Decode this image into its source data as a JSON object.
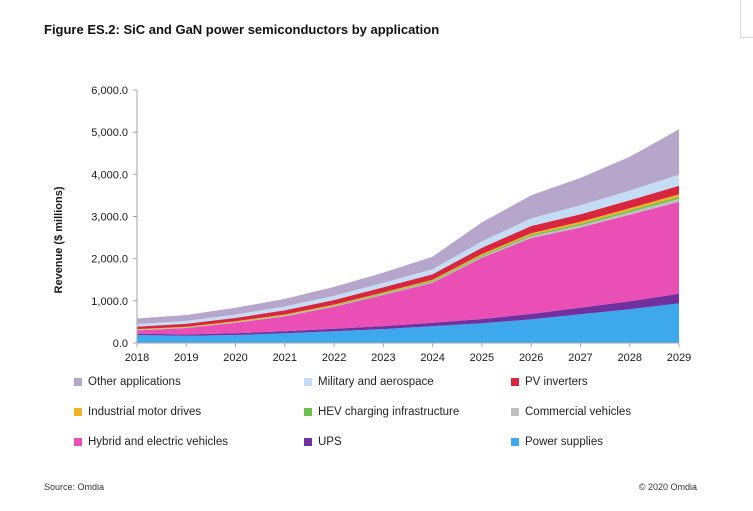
{
  "figure": {
    "title": "Figure ES.2: SiC and GaN power semiconductors by application",
    "source": "Source: Omdia",
    "copyright": "© 2020 Omdia"
  },
  "chart_data": {
    "type": "area",
    "stacked": true,
    "ylabel": "Revenue ($ millions)",
    "xlabel": "",
    "ylim": [
      0,
      6000
    ],
    "yticks": [
      "0.0",
      "1,000.0",
      "2,000.0",
      "3,000.0",
      "4,000.0",
      "5,000.0",
      "6,000.0"
    ],
    "categories": [
      "2018",
      "2019",
      "2020",
      "2021",
      "2022",
      "2023",
      "2024",
      "2025",
      "2026",
      "2027",
      "2028",
      "2029"
    ],
    "legend_position": "bottom",
    "grid": false,
    "series": [
      {
        "name": "Power supplies",
        "color": "#3ea8ec",
        "values": [
          190,
          170,
          190,
          230,
          280,
          330,
          400,
          470,
          560,
          680,
          800,
          940
        ]
      },
      {
        "name": "UPS",
        "color": "#7030a0",
        "values": [
          30,
          35,
          40,
          50,
          60,
          70,
          80,
          100,
          130,
          160,
          190,
          230
        ]
      },
      {
        "name": "Hybrid and electric vehicles",
        "color": "#e94fb5",
        "values": [
          80,
          150,
          250,
          350,
          520,
          740,
          950,
          1450,
          1800,
          1900,
          2050,
          2180
        ]
      },
      {
        "name": "Commercial vehicles",
        "color": "#bfbfbf",
        "values": [
          10,
          10,
          10,
          15,
          15,
          20,
          20,
          30,
          40,
          50,
          60,
          70
        ]
      },
      {
        "name": "HEV charging infrastructure",
        "color": "#6cc24a",
        "values": [
          10,
          10,
          10,
          15,
          15,
          20,
          25,
          30,
          35,
          40,
          45,
          50
        ]
      },
      {
        "name": "Industrial motor drives",
        "color": "#f0b323",
        "values": [
          10,
          10,
          15,
          15,
          20,
          20,
          25,
          30,
          40,
          45,
          50,
          60
        ]
      },
      {
        "name": "PV inverters",
        "color": "#d7263d",
        "values": [
          60,
          70,
          80,
          100,
          110,
          120,
          130,
          150,
          170,
          180,
          190,
          200
        ]
      },
      {
        "name": "Military and aerospace",
        "color": "#c5dcf5",
        "values": [
          60,
          70,
          80,
          90,
          100,
          110,
          120,
          150,
          180,
          210,
          230,
          260
        ]
      },
      {
        "name": "Other applications",
        "color": "#b7a6cc",
        "values": [
          130,
          140,
          160,
          180,
          210,
          240,
          300,
          450,
          550,
          650,
          800,
          1080
        ]
      }
    ]
  },
  "legend": [
    {
      "label": "Other applications",
      "color": "#b7a6cc"
    },
    {
      "label": "Military and aerospace",
      "color": "#c5dcf5"
    },
    {
      "label": "PV inverters",
      "color": "#d7263d"
    },
    {
      "label": "Industrial motor drives",
      "color": "#f0b323"
    },
    {
      "label": "HEV charging infrastructure",
      "color": "#6cc24a"
    },
    {
      "label": "Commercial vehicles",
      "color": "#bfbfbf"
    },
    {
      "label": "Hybrid and electric vehicles",
      "color": "#e94fb5"
    },
    {
      "label": "UPS",
      "color": "#7030a0"
    },
    {
      "label": "Power supplies",
      "color": "#3ea8ec"
    }
  ]
}
